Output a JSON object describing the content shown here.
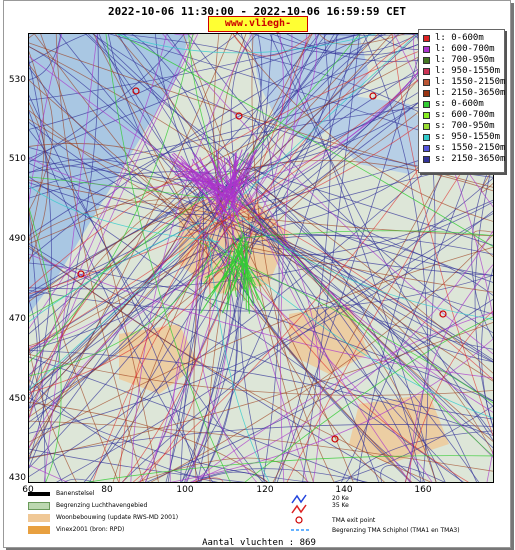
{
  "header": {
    "title": "2022-10-06 11:30:00 - 2022-10-06 16:59:59 CET",
    "site": "www.vliegh­inder.nl"
  },
  "axes": {
    "y_ticks": [
      "530",
      "510",
      "490",
      "470",
      "450",
      "430"
    ],
    "x_ticks": [
      "60",
      "80",
      "100",
      "120",
      "140",
      "160"
    ]
  },
  "legend": {
    "items": [
      {
        "label": "l: 0-600m",
        "color": "#dd2222"
      },
      {
        "label": "l: 600-700m",
        "color": "#aa33cc"
      },
      {
        "label": "l: 700-950m",
        "color": "#447722"
      },
      {
        "label": "l: 950-1550m",
        "color": "#cc3355"
      },
      {
        "label": "l: 1550-2150m",
        "color": "#bb5533"
      },
      {
        "label": "l: 2150-3650m",
        "color": "#993311"
      },
      {
        "label": "s: 0-600m",
        "color": "#33cc33"
      },
      {
        "label": "s: 600-700m",
        "color": "#88ee22"
      },
      {
        "label": "s: 700-950m",
        "color": "#99dd33"
      },
      {
        "label": "s: 950-1550m",
        "color": "#33cccc"
      },
      {
        "label": "s: 1550-2150m",
        "color": "#5555dd"
      },
      {
        "label": "s: 2150-3650m",
        "color": "#333399"
      }
    ]
  },
  "bottom_legend": {
    "runway": "Banenstelsel",
    "airport_boundary": "Begrenzing Luchthavengebied",
    "housing": "Woonbebouwing (update RWS-MD 2001)",
    "vinex": "Vinex2001 (bron: RPD)",
    "ke20": "20 Ke",
    "ke35": "35 Ke",
    "tma_exit": "TMA exit point",
    "tma_boundary": "Begrenzing TMA Schiphol  (TMA1 en TMA3)"
  },
  "footer": {
    "count": "Aantal vluchten : 869"
  },
  "colors": {
    "red": "#dd2222",
    "purple": "#aa33cc",
    "navy": "#333399",
    "brown": "#993311",
    "green": "#33cc33",
    "cyan": "#33cccc",
    "water": "#a9c7e3",
    "land": "#dde6d8",
    "urban": "#f0c896"
  }
}
